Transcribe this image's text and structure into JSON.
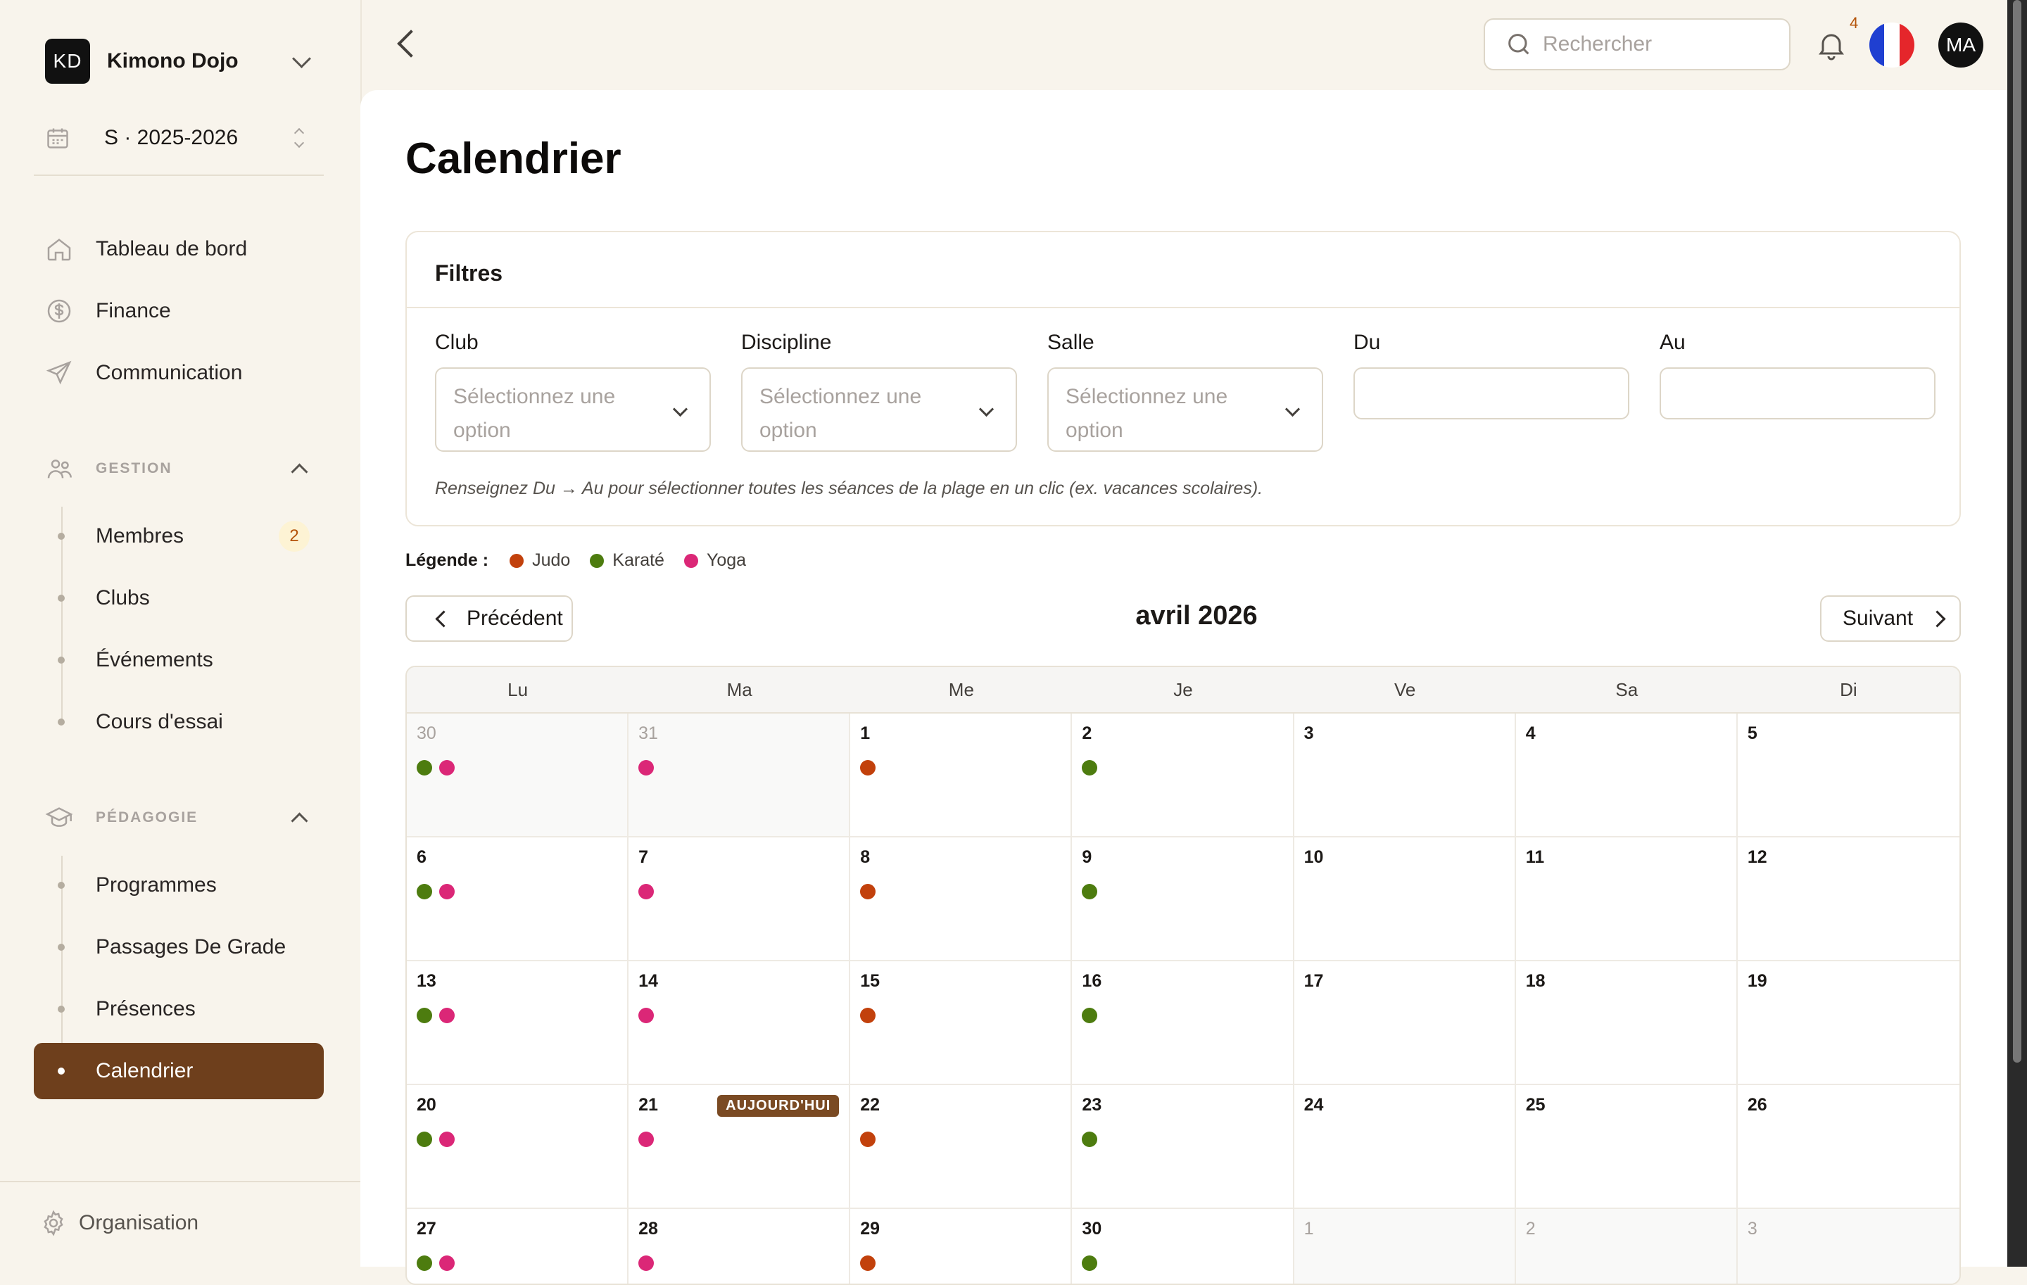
{
  "org": {
    "logo": "KD",
    "name": "Kimono Dojo"
  },
  "season": {
    "label": "S · 2025-2026"
  },
  "nav": [
    {
      "label": "Tableau de bord",
      "icon": "home-icon"
    },
    {
      "label": "Finance",
      "icon": "dollar-icon"
    },
    {
      "label": "Communication",
      "icon": "send-icon"
    }
  ],
  "gestion": {
    "title": "GESTION",
    "items": [
      {
        "label": "Membres",
        "badge": "2"
      },
      {
        "label": "Clubs"
      },
      {
        "label": "Événements"
      },
      {
        "label": "Cours d'essai"
      }
    ]
  },
  "pedagogie": {
    "title": "PÉDAGOGIE",
    "items": [
      {
        "label": "Programmes"
      },
      {
        "label": "Passages De Grade"
      },
      {
        "label": "Présences"
      },
      {
        "label": "Calendrier",
        "active": true
      }
    ]
  },
  "footer": {
    "label": "Organisation"
  },
  "topbar": {
    "search_placeholder": "Rechercher",
    "notifications": "4",
    "avatar": "MA"
  },
  "page": {
    "title": "Calendrier"
  },
  "filters": {
    "title": "Filtres",
    "club": {
      "label": "Club",
      "placeholder": "Sélectionnez une option"
    },
    "discipline": {
      "label": "Discipline",
      "placeholder": "Sélectionnez une option"
    },
    "salle": {
      "label": "Salle",
      "placeholder": "Sélectionnez une option"
    },
    "du": {
      "label": "Du"
    },
    "au": {
      "label": "Au"
    },
    "hint": "Renseignez Du → Au pour sélectionner toutes les séances de la plage en un clic (ex. vacances scolaires)."
  },
  "legend": {
    "title": "Légende :",
    "items": [
      {
        "label": "Judo",
        "color": "#c2410c"
      },
      {
        "label": "Karaté",
        "color": "#4d7c0f"
      },
      {
        "label": "Yoga",
        "color": "#db2777"
      }
    ]
  },
  "calendar": {
    "prev_label": "Précédent",
    "next_label": "Suivant",
    "month": "avril 2026",
    "weekdays": [
      "Lu",
      "Ma",
      "Me",
      "Je",
      "Ve",
      "Sa",
      "Di"
    ],
    "today_label": "AUJOURD'HUI",
    "days": [
      {
        "n": "30",
        "out": true,
        "dots": [
          "Karaté",
          "Yoga"
        ]
      },
      {
        "n": "31",
        "out": true,
        "dots": [
          "Yoga"
        ]
      },
      {
        "n": "1",
        "dots": [
          "Judo"
        ]
      },
      {
        "n": "2",
        "dots": [
          "Karaté"
        ]
      },
      {
        "n": "3",
        "dots": []
      },
      {
        "n": "4",
        "dots": []
      },
      {
        "n": "5",
        "dots": []
      },
      {
        "n": "6",
        "dots": [
          "Karaté",
          "Yoga"
        ]
      },
      {
        "n": "7",
        "dots": [
          "Yoga"
        ]
      },
      {
        "n": "8",
        "dots": [
          "Judo"
        ]
      },
      {
        "n": "9",
        "dots": [
          "Karaté"
        ]
      },
      {
        "n": "10",
        "dots": []
      },
      {
        "n": "11",
        "dots": []
      },
      {
        "n": "12",
        "dots": []
      },
      {
        "n": "13",
        "dots": [
          "Karaté",
          "Yoga"
        ]
      },
      {
        "n": "14",
        "dots": [
          "Yoga"
        ]
      },
      {
        "n": "15",
        "dots": [
          "Judo"
        ]
      },
      {
        "n": "16",
        "dots": [
          "Karaté"
        ]
      },
      {
        "n": "17",
        "dots": []
      },
      {
        "n": "18",
        "dots": []
      },
      {
        "n": "19",
        "dots": []
      },
      {
        "n": "20",
        "dots": [
          "Karaté",
          "Yoga"
        ]
      },
      {
        "n": "21",
        "dots": [
          "Yoga"
        ],
        "today": true
      },
      {
        "n": "22",
        "dots": [
          "Judo"
        ]
      },
      {
        "n": "23",
        "dots": [
          "Karaté"
        ]
      },
      {
        "n": "24",
        "dots": []
      },
      {
        "n": "25",
        "dots": []
      },
      {
        "n": "26",
        "dots": []
      },
      {
        "n": "27",
        "dots": [
          "Karaté",
          "Yoga"
        ]
      },
      {
        "n": "28",
        "dots": [
          "Yoga"
        ]
      },
      {
        "n": "29",
        "dots": [
          "Judo"
        ]
      },
      {
        "n": "30",
        "dots": [
          "Karaté"
        ]
      },
      {
        "n": "1",
        "out": true,
        "dots": []
      },
      {
        "n": "2",
        "out": true,
        "dots": []
      },
      {
        "n": "3",
        "out": true,
        "dots": []
      }
    ]
  }
}
